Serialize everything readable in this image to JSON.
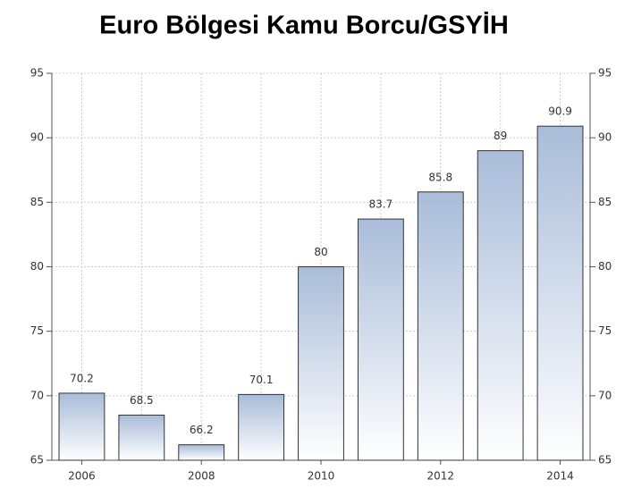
{
  "chart_data": {
    "type": "bar",
    "title": "Euro Bölgesi Kamu Borcu/GSYİH",
    "categories": [
      "2006",
      null,
      "2008",
      null,
      "2010",
      null,
      "2012",
      null,
      "2014"
    ],
    "values": [
      70.2,
      68.5,
      66.2,
      70.1,
      80,
      83.7,
      85.8,
      89,
      90.9
    ],
    "color": "#a9bcd9",
    "ylim": [
      65,
      95
    ],
    "yticks": [
      65,
      70,
      75,
      80,
      85,
      90,
      95
    ],
    "y2lim": [
      65,
      95
    ],
    "y2ticks": [
      65,
      70,
      75,
      80,
      85,
      90,
      95
    ],
    "grid": true
  }
}
